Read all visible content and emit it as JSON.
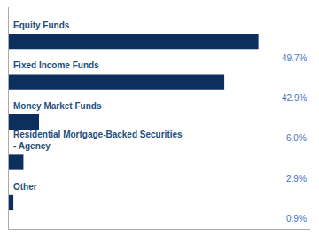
{
  "chart_data": {
    "type": "bar",
    "orientation": "horizontal",
    "categories": [
      "Equity Funds",
      "Fixed Income Funds",
      "Money Market Funds",
      "Residential Mortgage-Backed Securities\n- Agency",
      "Other"
    ],
    "values": [
      49.7,
      42.9,
      6.0,
      2.9,
      0.9
    ],
    "value_labels": [
      "49.7%",
      "42.9%",
      "6.0%",
      "2.9%",
      "0.9%"
    ],
    "color": "#0d2f5e",
    "xlim": [
      0,
      60
    ],
    "data_labels": true,
    "tick_labels": false,
    "grid": false
  }
}
